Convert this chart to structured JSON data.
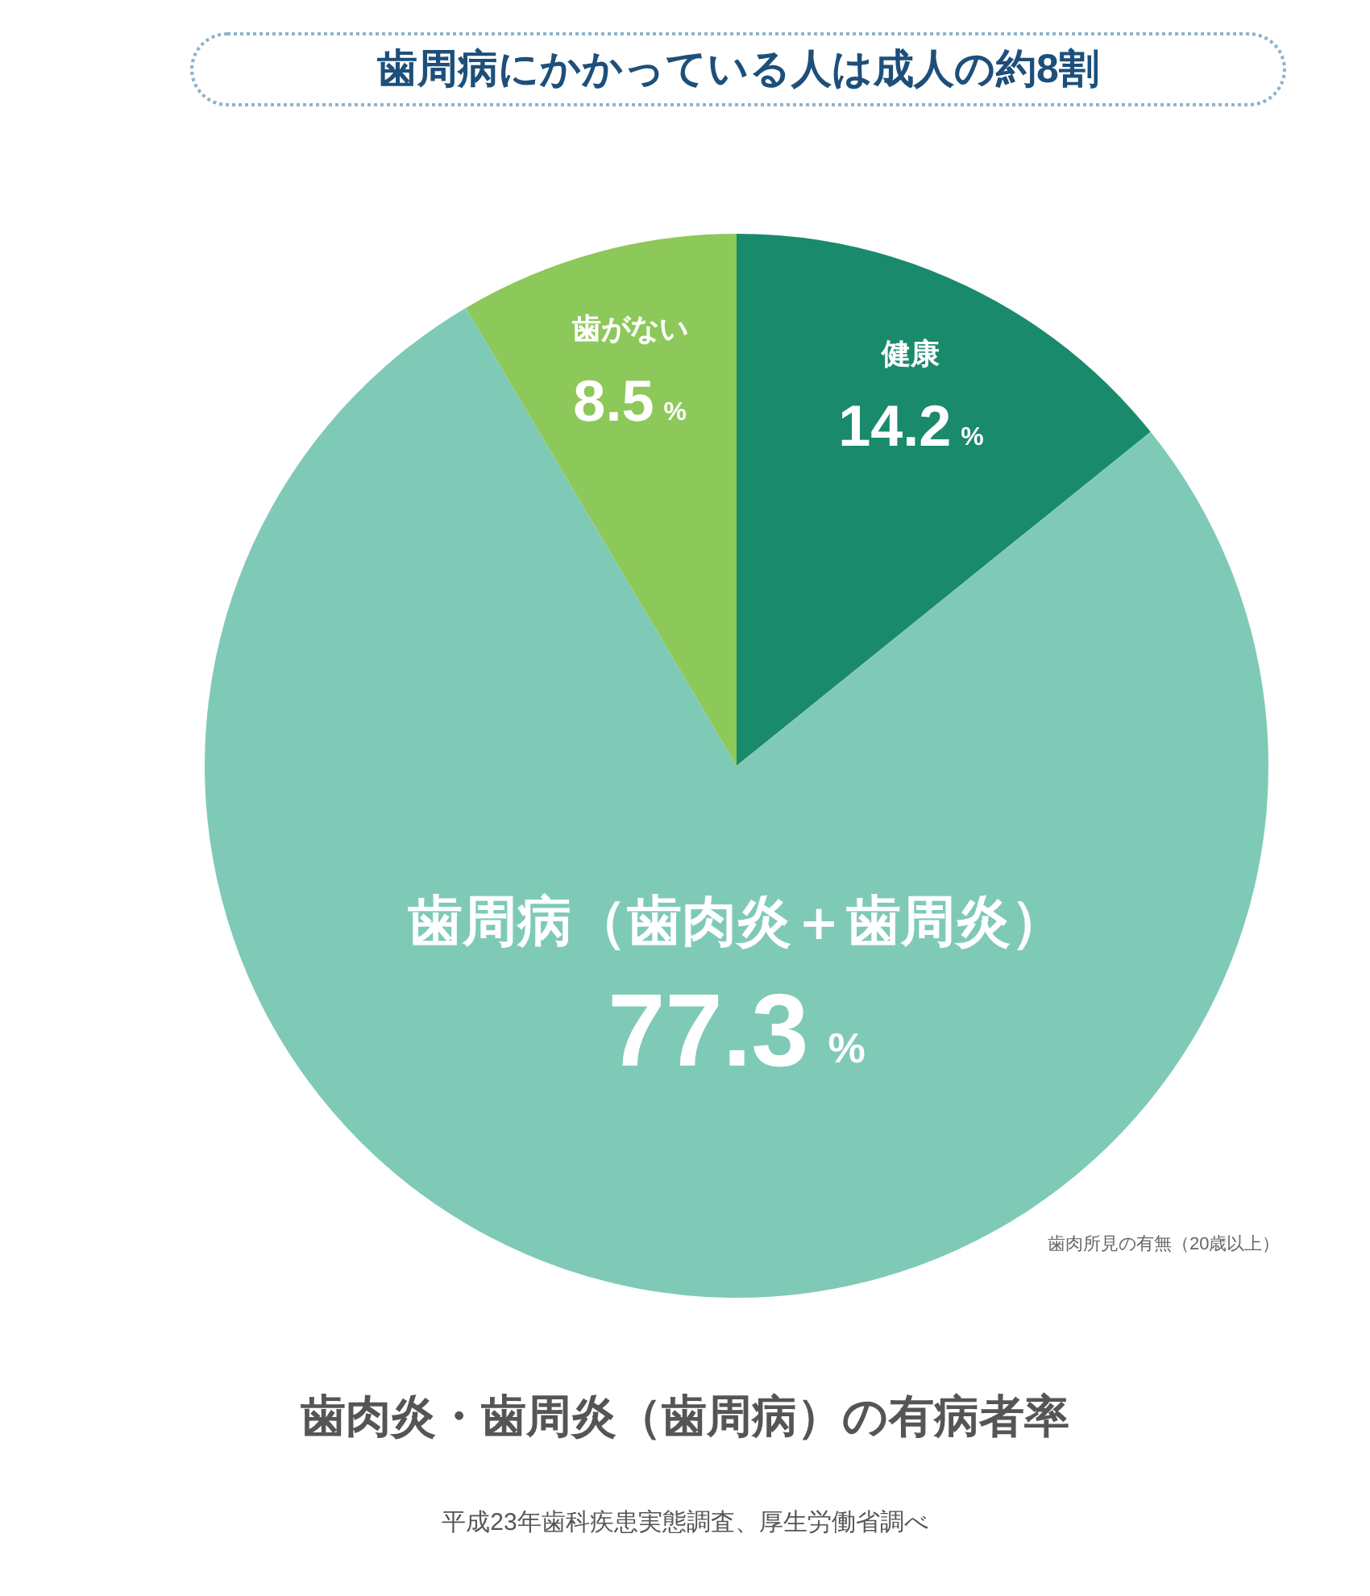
{
  "chart_data": {
    "type": "pie",
    "title": "歯周病にかかっている人は成人の約8割",
    "subtitle": "歯肉炎・歯周炎（歯周病）の有病者率",
    "categories": [
      "健康",
      "歯周病（歯肉炎＋歯周炎）",
      "歯がない"
    ],
    "values": [
      14.2,
      77.3,
      8.5
    ],
    "colors": [
      "#1a8a6c",
      "#7fcab7",
      "#8dc85a"
    ],
    "value_labels": [
      "14.2%",
      "77.3%",
      "8.5%"
    ],
    "annotations": [
      "歯肉所見の有無（20歳以上）",
      "平成23年歯科疾患実態調査、厚生労働省調べ"
    ],
    "legend": false
  }
}
